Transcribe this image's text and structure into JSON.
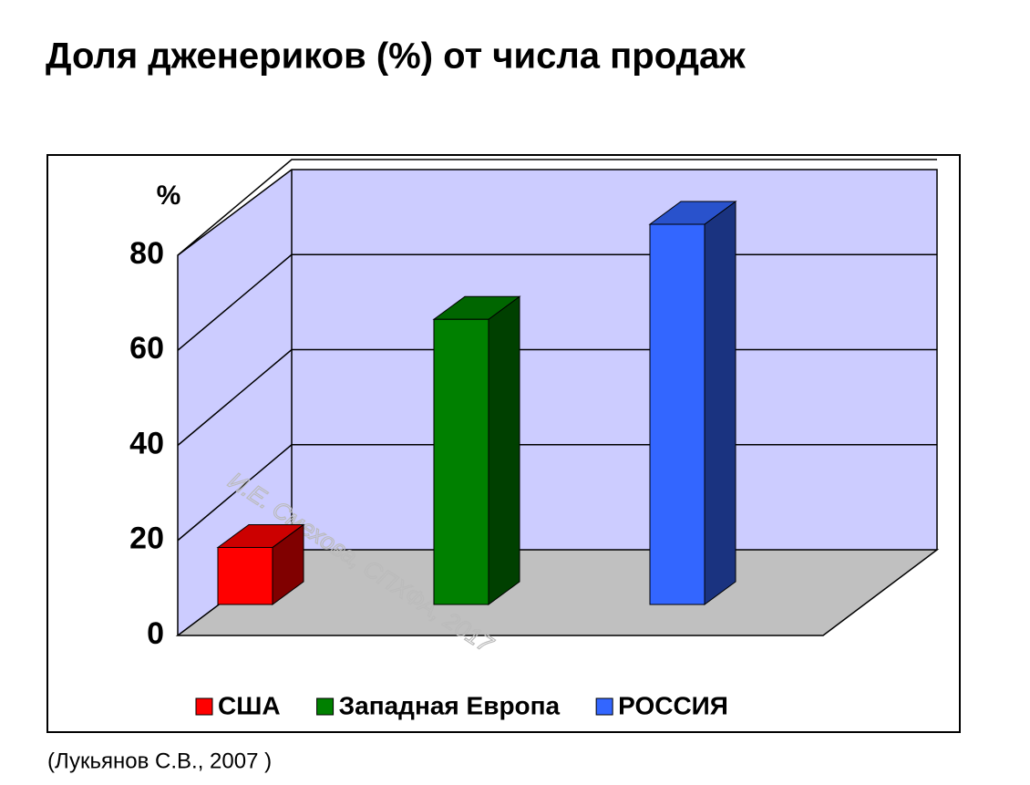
{
  "chart_data": {
    "type": "bar3d",
    "title": "Доля дженериков (%) от числа продаж",
    "y_label": "%",
    "categories": [
      "США",
      "Западная Европа",
      "РОССИЯ"
    ],
    "series": [
      {
        "name": "США",
        "color": "#ff0000",
        "values": [
          12,
          null,
          null
        ]
      },
      {
        "name": "Западная Европа",
        "color": "#008000",
        "values": [
          null,
          60,
          null
        ]
      },
      {
        "name": "РОССИЯ",
        "color": "#3366ff",
        "values": [
          null,
          null,
          80
        ]
      }
    ],
    "ylim": [
      0,
      80
    ],
    "yticks": [
      0,
      20,
      40,
      60,
      80
    ],
    "grid": true,
    "watermark": "И.Е. Смехова, СПХФА, 2017",
    "source": "(Лукьянов С.В., 2007 )"
  }
}
